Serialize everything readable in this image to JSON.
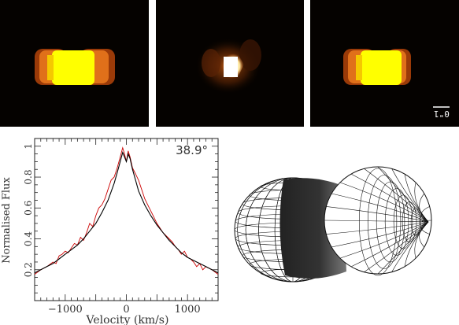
{
  "figure": {
    "images": [
      {
        "name": "model-image-left"
      },
      {
        "name": "observed-image-center"
      },
      {
        "name": "model-image-right",
        "scale_label": "0\"1"
      }
    ],
    "colors": {
      "background": "#050200",
      "bright": "#ffff00",
      "limb": "#e0701a",
      "dim": "#9a3a08",
      "observed_core": "#ffffff",
      "observed_halo": "#c85a10"
    }
  },
  "chart_data": {
    "type": "line",
    "annotation": "38.9°",
    "xlabel": "Velocity (km/s)",
    "ylabel": "Normalised Flux",
    "xlim": [
      -1500,
      1500
    ],
    "ylim": [
      0,
      1.05
    ],
    "xticks": [
      -1000,
      0,
      1000
    ],
    "yticks": [
      0.2,
      0.4,
      0.6,
      0.8,
      1
    ],
    "ytick_labels": [
      "0.2",
      "0.4",
      "0.6",
      "0.8",
      "1"
    ],
    "series": [
      {
        "color": "#cc0000",
        "x": [
          -1500,
          -1400,
          -1300,
          -1200,
          -1150,
          -1100,
          -1050,
          -1000,
          -950,
          -900,
          -850,
          -800,
          -750,
          -700,
          -650,
          -600,
          -550,
          -500,
          -450,
          -400,
          -350,
          -300,
          -250,
          -200,
          -150,
          -100,
          -60,
          -30,
          0,
          30,
          60,
          100,
          150,
          200,
          250,
          300,
          350,
          400,
          450,
          500,
          550,
          600,
          650,
          700,
          750,
          800,
          850,
          900,
          950,
          1000,
          1050,
          1100,
          1150,
          1200,
          1250,
          1300,
          1400,
          1500
        ],
        "y": [
          0.17,
          0.2,
          0.22,
          0.25,
          0.24,
          0.29,
          0.3,
          0.32,
          0.31,
          0.34,
          0.37,
          0.36,
          0.41,
          0.39,
          0.44,
          0.5,
          0.48,
          0.55,
          0.6,
          0.62,
          0.66,
          0.72,
          0.78,
          0.8,
          0.86,
          0.93,
          0.99,
          0.95,
          0.9,
          0.97,
          0.93,
          0.86,
          0.82,
          0.78,
          0.72,
          0.66,
          0.62,
          0.58,
          0.54,
          0.5,
          0.47,
          0.44,
          0.42,
          0.4,
          0.38,
          0.35,
          0.33,
          0.3,
          0.32,
          0.28,
          0.27,
          0.25,
          0.22,
          0.24,
          0.2,
          0.22,
          0.2,
          0.17
        ]
      },
      {
        "color": "#000000",
        "x": [
          -1500,
          -1400,
          -1300,
          -1200,
          -1100,
          -1000,
          -900,
          -800,
          -700,
          -600,
          -500,
          -400,
          -300,
          -200,
          -150,
          -100,
          -60,
          -30,
          0,
          30,
          60,
          100,
          150,
          200,
          300,
          400,
          500,
          600,
          700,
          800,
          900,
          1000,
          1100,
          1200,
          1300,
          1400,
          1500
        ],
        "y": [
          0.18,
          0.2,
          0.22,
          0.24,
          0.27,
          0.3,
          0.33,
          0.36,
          0.4,
          0.45,
          0.5,
          0.57,
          0.65,
          0.76,
          0.83,
          0.9,
          0.96,
          0.93,
          0.9,
          0.95,
          0.92,
          0.85,
          0.78,
          0.71,
          0.62,
          0.55,
          0.49,
          0.44,
          0.39,
          0.35,
          0.31,
          0.28,
          0.26,
          0.24,
          0.22,
          0.2,
          0.18
        ]
      }
    ]
  }
}
